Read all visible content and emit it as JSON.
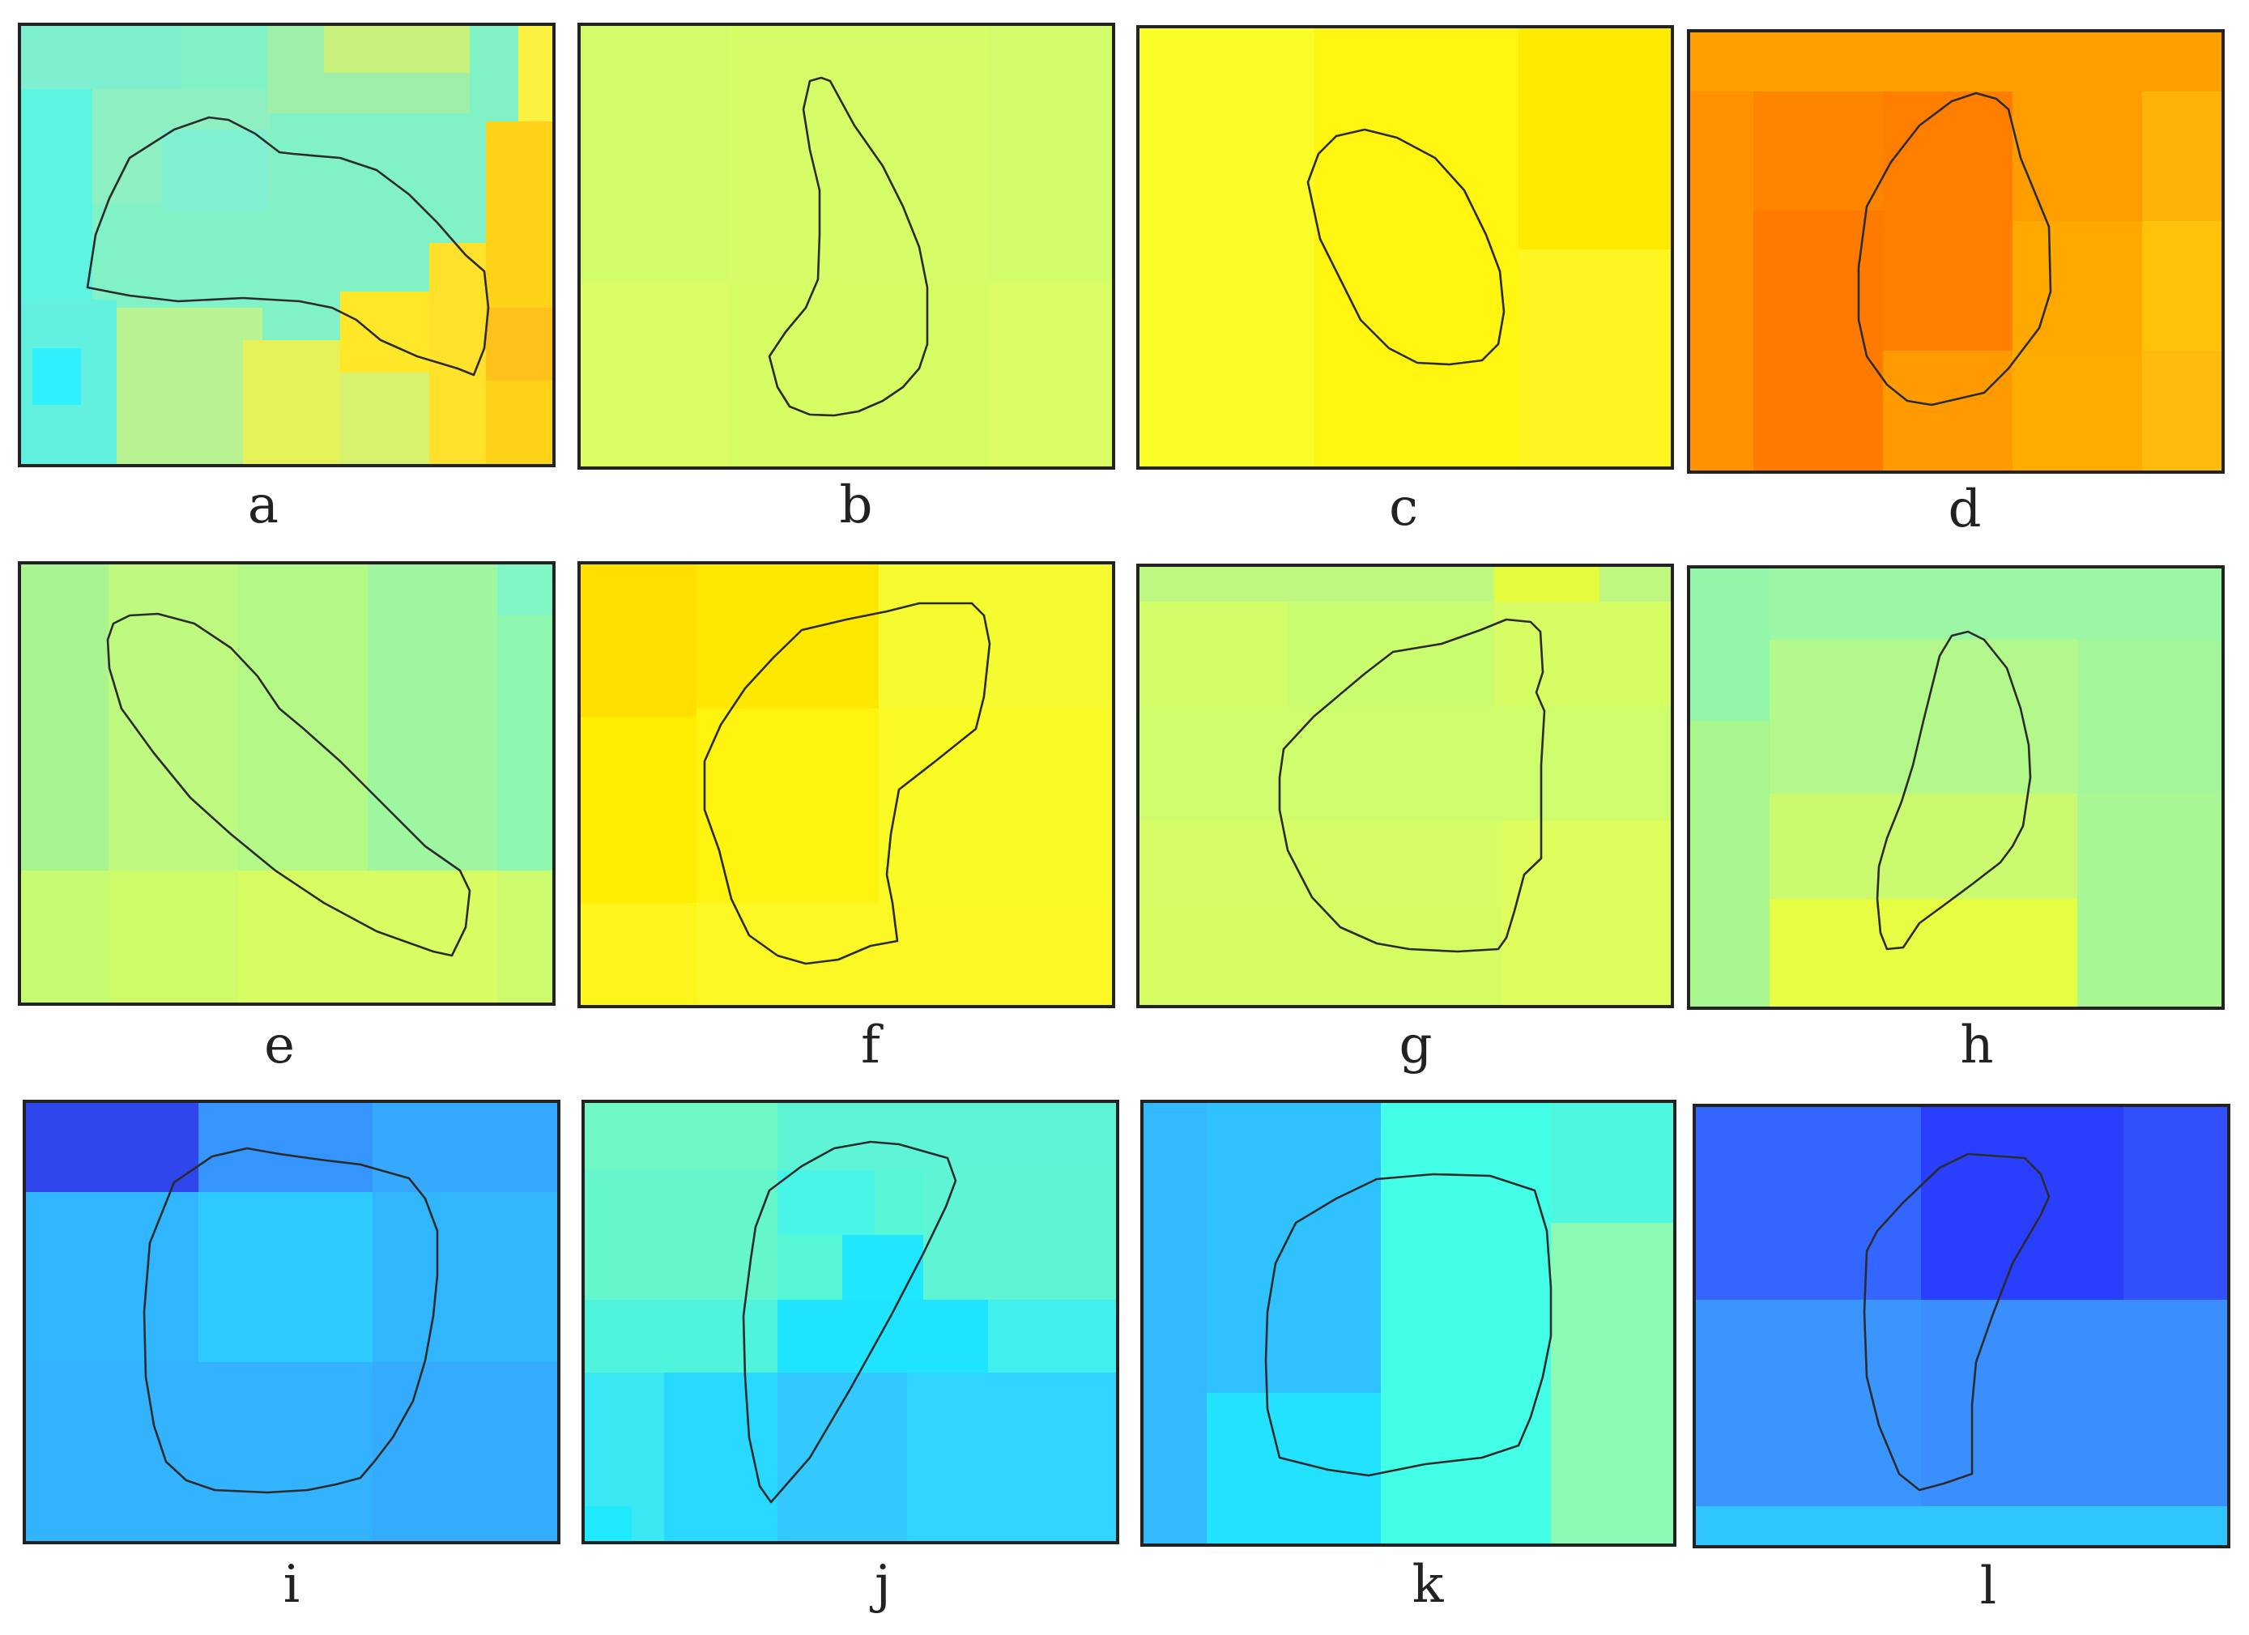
{
  "panels": [
    {
      "id": "a",
      "label": "a",
      "colors": [
        "#76f2d0",
        "#5ef4e2",
        "#a9f29c",
        "#f8eb3d",
        "#ffd21a"
      ]
    },
    {
      "id": "b",
      "label": "b",
      "colors": [
        "#d2fc69",
        "#dafd62"
      ]
    },
    {
      "id": "c",
      "label": "c",
      "colors": [
        "#ffff10",
        "#ffef00",
        "#fff520"
      ]
    },
    {
      "id": "d",
      "label": "d",
      "colors": [
        "#ff8c00",
        "#ff7a00",
        "#ffa500",
        "#ffc20a"
      ]
    },
    {
      "id": "e",
      "label": "e",
      "colors": [
        "#b7f97e",
        "#d2fd66",
        "#8ff7b0"
      ]
    },
    {
      "id": "f",
      "label": "f",
      "colors": [
        "#ffee00",
        "#fafb25",
        "#ffdd00"
      ]
    },
    {
      "id": "g",
      "label": "g",
      "colors": [
        "#c9fc70",
        "#dcfd60",
        "#e9fb50"
      ]
    },
    {
      "id": "h",
      "label": "h",
      "colors": [
        "#a5f98e",
        "#cdfb6e",
        "#eafd3a"
      ]
    },
    {
      "id": "i",
      "label": "i",
      "colors": [
        "#33b0fe",
        "#2ec9fe",
        "#2f46ec"
      ]
    },
    {
      "id": "j",
      "label": "j",
      "colors": [
        "#56f7d4",
        "#20e6ff",
        "#33c8fe"
      ]
    },
    {
      "id": "k",
      "label": "k",
      "colors": [
        "#30c2fe",
        "#44ffe8",
        "#8dfbb6"
      ]
    },
    {
      "id": "l",
      "label": "l",
      "colors": [
        "#3366ff",
        "#2a3efd",
        "#3a8cff",
        "#2fc6ff"
      ]
    }
  ]
}
